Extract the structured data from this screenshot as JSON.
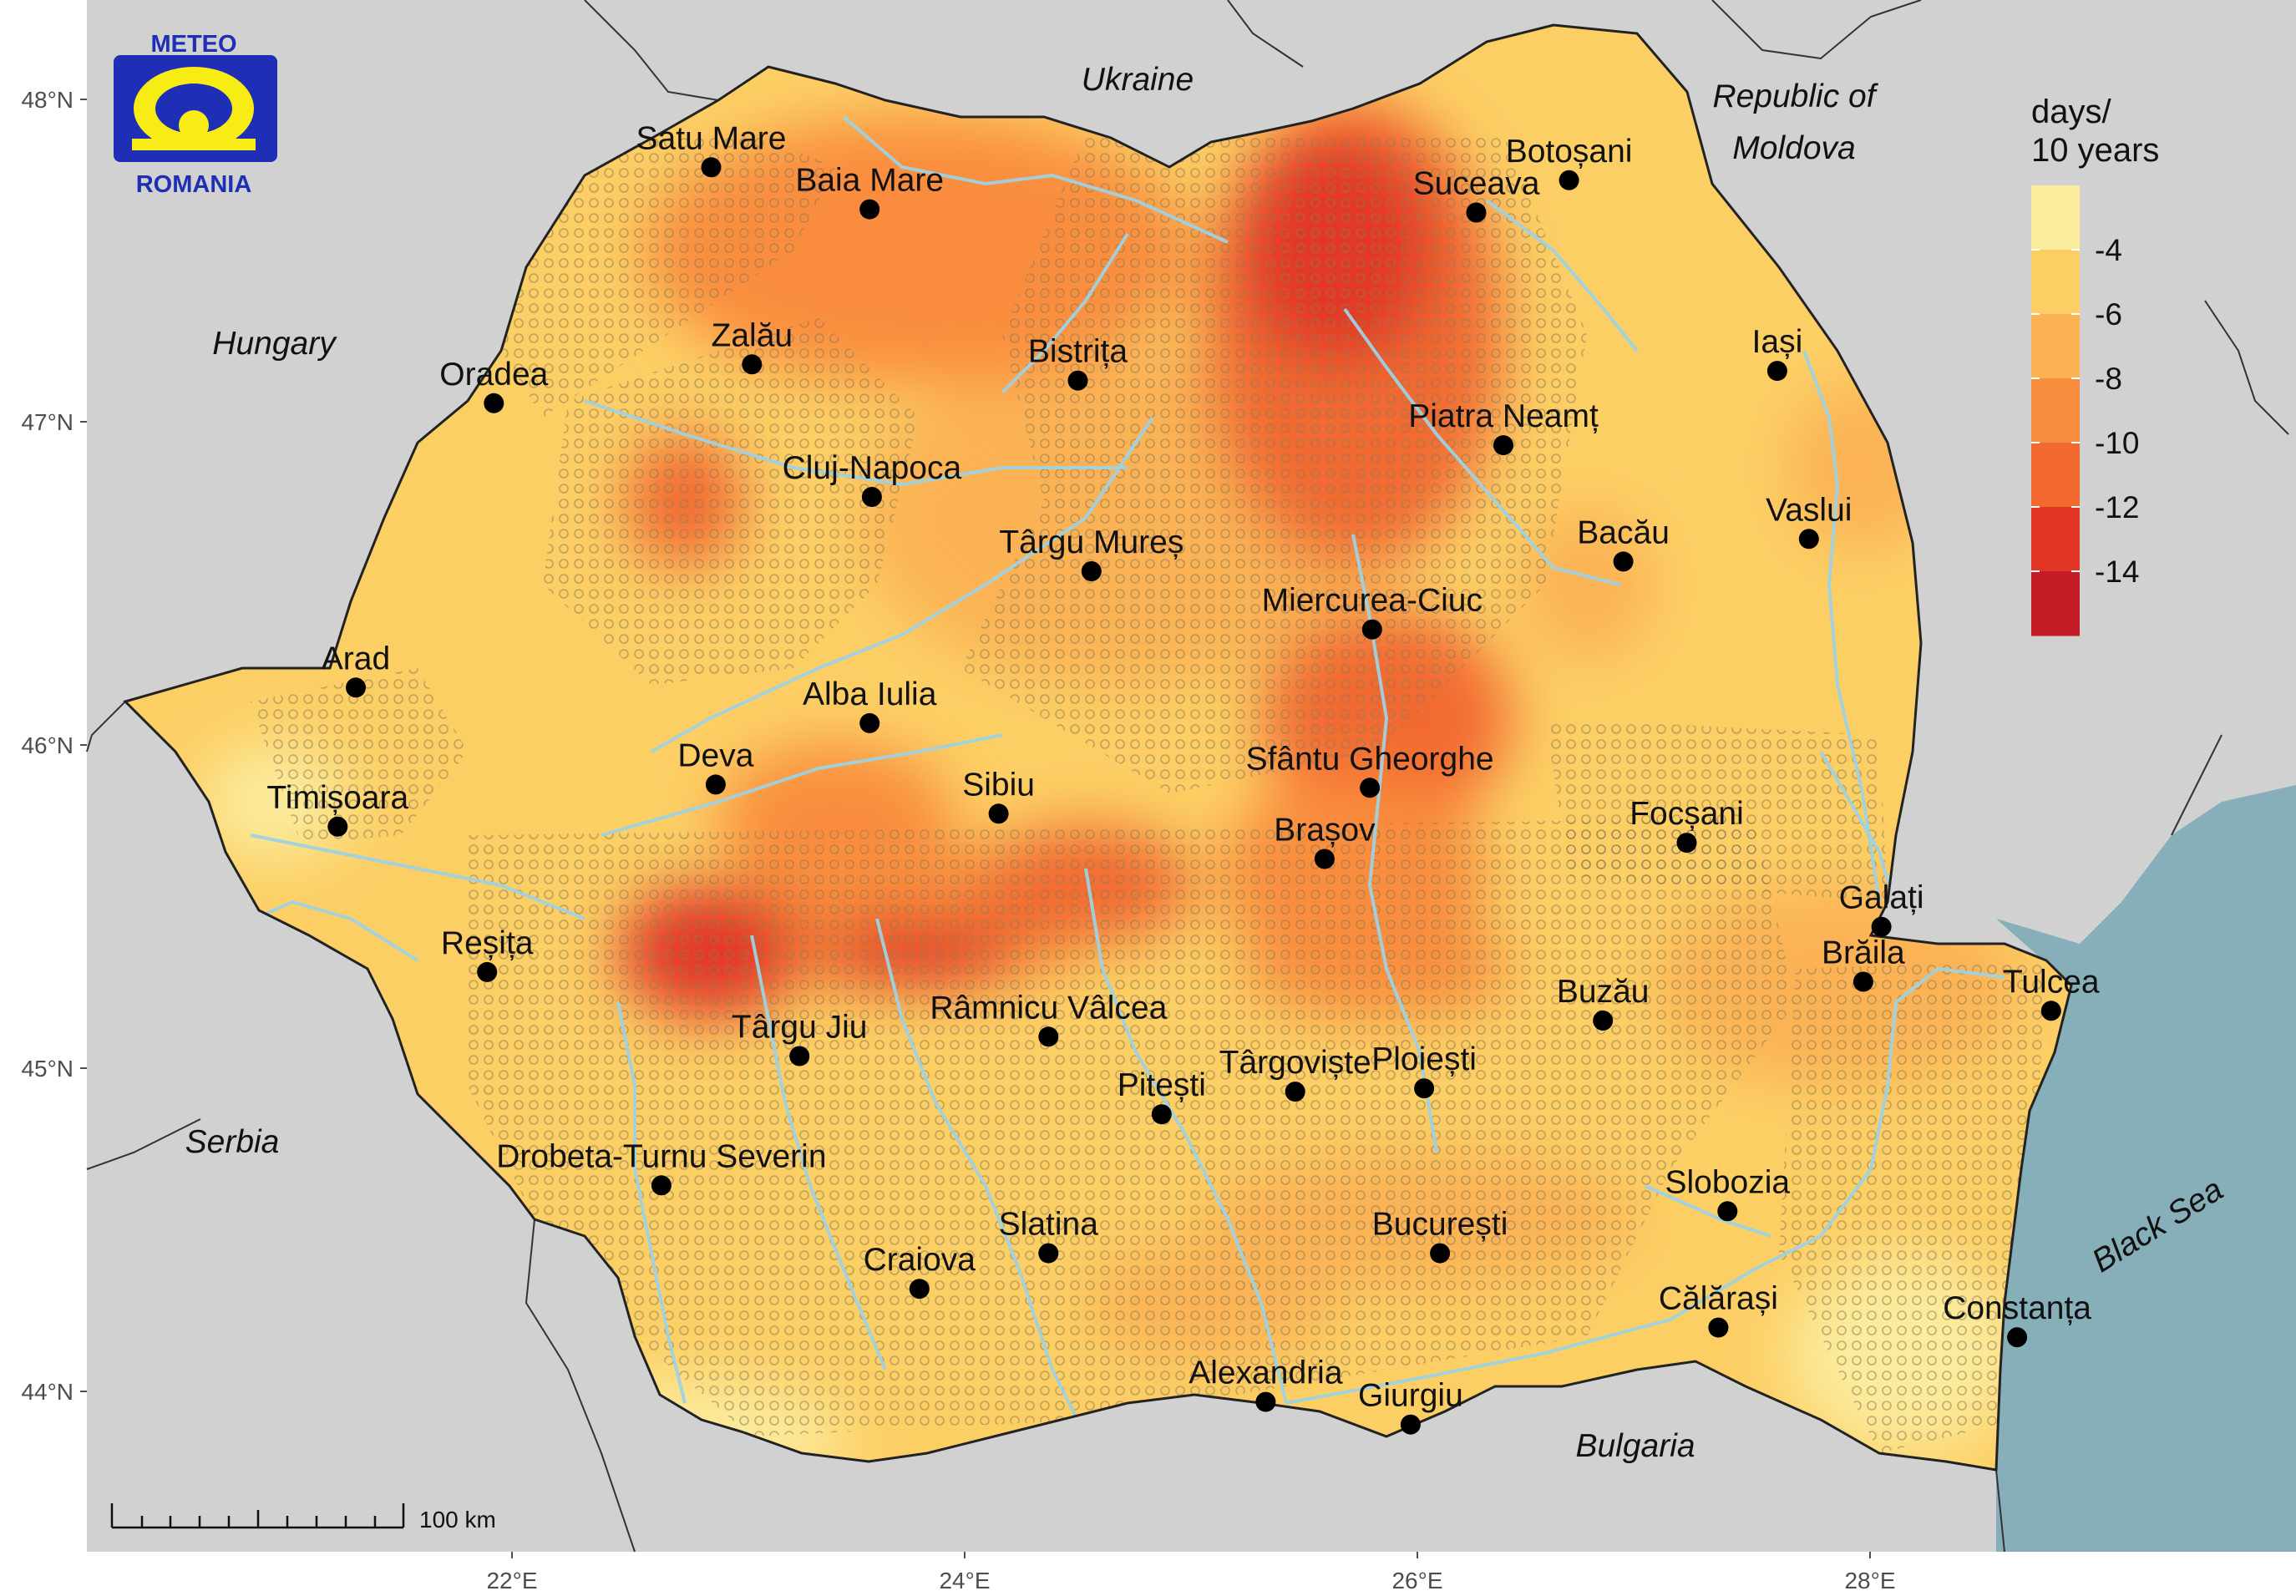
{
  "logo": {
    "top_text": "METEO",
    "bottom_text": "ROMANIA"
  },
  "legend": {
    "title_line1": "days/",
    "title_line2": "10 years",
    "colors": [
      "#fbeb9c",
      "#fccf65",
      "#fbb254",
      "#f98d3e",
      "#f26a30",
      "#e33725",
      "#c51b27"
    ],
    "ticks": [
      "-4",
      "-6",
      "-8",
      "-10",
      "-12",
      "-14"
    ]
  },
  "countries": [
    {
      "id": "ukraine",
      "label": "Ukraine"
    },
    {
      "id": "hungary",
      "label": "Hungary"
    },
    {
      "id": "moldova",
      "label": "Republic of",
      "label2": "Moldova"
    },
    {
      "id": "serbia",
      "label": "Serbia"
    },
    {
      "id": "bulgaria",
      "label": "Bulgaria"
    },
    {
      "id": "black-sea",
      "label": "Black Sea"
    }
  ],
  "cities": [
    {
      "name": "Satu Mare",
      "lon": 22.88,
      "lat": 47.79
    },
    {
      "name": "Baia Mare",
      "lon": 23.58,
      "lat": 47.66
    },
    {
      "name": "Botoșani",
      "lon": 26.67,
      "lat": 47.75
    },
    {
      "name": "Suceava",
      "lon": 26.26,
      "lat": 47.65
    },
    {
      "name": "Zalău",
      "lon": 23.06,
      "lat": 47.18
    },
    {
      "name": "Oradea",
      "lon": 21.92,
      "lat": 47.06
    },
    {
      "name": "Bistrița",
      "lon": 24.5,
      "lat": 47.13
    },
    {
      "name": "Iași",
      "lon": 27.59,
      "lat": 47.16
    },
    {
      "name": "Piatra Neamț",
      "lon": 26.38,
      "lat": 46.93
    },
    {
      "name": "Cluj-Napoca",
      "lon": 23.59,
      "lat": 46.77
    },
    {
      "name": "Vaslui",
      "lon": 27.73,
      "lat": 46.64
    },
    {
      "name": "Târgu Mureș",
      "lon": 24.56,
      "lat": 46.54
    },
    {
      "name": "Bacău",
      "lon": 26.91,
      "lat": 46.57
    },
    {
      "name": "Miercurea-Ciuc",
      "lon": 25.8,
      "lat": 46.36
    },
    {
      "name": "Arad",
      "lon": 21.31,
      "lat": 46.18
    },
    {
      "name": "Alba Iulia",
      "lon": 23.58,
      "lat": 46.07
    },
    {
      "name": "Deva",
      "lon": 22.9,
      "lat": 45.88
    },
    {
      "name": "Sfântu Gheorghe",
      "lon": 25.79,
      "lat": 45.87
    },
    {
      "name": "Timișoara",
      "lon": 21.23,
      "lat": 45.75
    },
    {
      "name": "Sibiu",
      "lon": 24.15,
      "lat": 45.79
    },
    {
      "name": "Focșani",
      "lon": 27.19,
      "lat": 45.7
    },
    {
      "name": "Brașov",
      "lon": 25.59,
      "lat": 45.65
    },
    {
      "name": "Galați",
      "lon": 28.05,
      "lat": 45.44
    },
    {
      "name": "Reșița",
      "lon": 21.89,
      "lat": 45.3
    },
    {
      "name": "Brăila",
      "lon": 27.97,
      "lat": 45.27
    },
    {
      "name": "Buzău",
      "lon": 26.82,
      "lat": 45.15
    },
    {
      "name": "Tulcea",
      "lon": 28.8,
      "lat": 45.18
    },
    {
      "name": "Râmnicu Vâlcea",
      "lon": 24.37,
      "lat": 45.1
    },
    {
      "name": "Târgu Jiu",
      "lon": 23.27,
      "lat": 45.04
    },
    {
      "name": "Târgoviște",
      "lon": 25.46,
      "lat": 44.93
    },
    {
      "name": "Ploiești",
      "lon": 26.03,
      "lat": 44.94
    },
    {
      "name": "Pitești",
      "lon": 24.87,
      "lat": 44.86
    },
    {
      "name": "Drobeta-Turnu Severin",
      "lon": 22.66,
      "lat": 44.64
    },
    {
      "name": "Slobozia",
      "lon": 27.37,
      "lat": 44.56
    },
    {
      "name": "Slatina",
      "lon": 24.37,
      "lat": 44.43
    },
    {
      "name": "București",
      "lon": 26.1,
      "lat": 44.43
    },
    {
      "name": "Craiova",
      "lon": 23.8,
      "lat": 44.32
    },
    {
      "name": "Călărași",
      "lon": 27.33,
      "lat": 44.2
    },
    {
      "name": "Constanța",
      "lon": 28.65,
      "lat": 44.17
    },
    {
      "name": "Alexandria",
      "lon": 25.33,
      "lat": 43.97
    },
    {
      "name": "Giurgiu",
      "lon": 25.97,
      "lat": 43.9
    }
  ],
  "axes": {
    "lat_labels": [
      "48°N",
      "47°N",
      "46°N",
      "45°N",
      "44°N"
    ],
    "lon_labels": [
      "22°E",
      "24°E",
      "26°E",
      "28°E"
    ]
  },
  "scale_bar": {
    "label": "100 km"
  }
}
